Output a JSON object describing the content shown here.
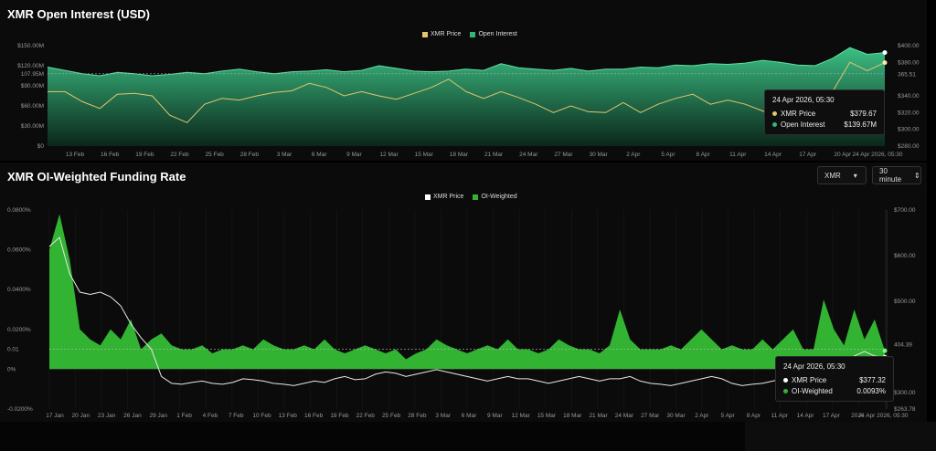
{
  "colors": {
    "price": "#e3c56c",
    "oi": "#35b57a",
    "funding": "#32b332",
    "price2": "#ffffff",
    "bg": "#0b0b0b"
  },
  "oi_panel": {
    "title": "XMR Open Interest (USD)",
    "legend": [
      {
        "label": "XMR Price",
        "color": "#e3c56c"
      },
      {
        "label": "Open Interest",
        "color": "#35b57a"
      }
    ],
    "tooltip": {
      "date": "24 Apr 2026, 05:30",
      "rows": [
        {
          "label": "XMR Price",
          "value": "$379.67",
          "color": "#e3c56c"
        },
        {
          "label": "Open Interest",
          "value": "$139.67M",
          "color": "#35b57a"
        }
      ]
    },
    "cursor_label": "365.51"
  },
  "funding_panel": {
    "title": "XMR OI-Weighted Funding Rate",
    "select_symbol": "XMR",
    "select_interval": "30 minute",
    "legend": [
      {
        "label": "XMR Price",
        "color": "#ffffff"
      },
      {
        "label": "OI-Weighted",
        "color": "#32b332"
      }
    ],
    "tooltip": {
      "date": "24 Apr 2026, 05:30",
      "rows": [
        {
          "label": "XMR Price",
          "value": "$377.32",
          "color": "#ffffff"
        },
        {
          "label": "OI-Weighted",
          "value": "0.0093%",
          "color": "#32b332"
        }
      ]
    },
    "cursor_label": "404.39",
    "y_marker_label": "0.01"
  },
  "chart_data": [
    {
      "type": "area",
      "title": "XMR Open Interest (USD)",
      "x_ticks": [
        "13 Feb",
        "16 Feb",
        "19 Feb",
        "22 Feb",
        "25 Feb",
        "28 Feb",
        "3 Mar",
        "6 Mar",
        "9 Mar",
        "12 Mar",
        "15 Mar",
        "18 Mar",
        "21 Mar",
        "24 Mar",
        "27 Mar",
        "30 Mar",
        "2 Apr",
        "5 Apr",
        "8 Apr",
        "11 Apr",
        "14 Apr",
        "17 Apr",
        "20 Apr",
        "24 Apr 2026, 05:30"
      ],
      "y_left_ticks": [
        "$0",
        "$30.00M",
        "$60.00M",
        "$90.00M",
        "107.95M",
        "$120.00M",
        "$150.00M"
      ],
      "y_right_ticks": [
        "$280.00",
        "$300.00",
        "$320.00",
        "$340.00",
        "365.51",
        "$380.00",
        "$400.00"
      ],
      "ylim_left": [
        0,
        150
      ],
      "ylim_right": [
        280,
        400
      ],
      "series": [
        {
          "name": "Open Interest",
          "unit": "$M",
          "values": [
            118,
            113,
            108,
            105,
            110,
            108,
            105,
            107,
            110,
            108,
            112,
            115,
            111,
            108,
            111,
            112,
            114,
            111,
            113,
            120,
            116,
            112,
            111,
            112,
            115,
            113,
            123,
            117,
            115,
            113,
            116,
            112,
            115,
            115,
            118,
            117,
            121,
            120,
            123,
            122,
            124,
            128,
            125,
            121,
            120,
            131,
            147,
            137,
            139.67
          ]
        },
        {
          "name": "XMR Price",
          "unit": "$",
          "values": [
            345,
            345,
            333,
            325,
            342,
            343,
            340,
            317,
            308,
            330,
            337,
            335,
            340,
            344,
            346,
            355,
            350,
            340,
            345,
            340,
            336,
            343,
            350,
            360,
            345,
            337,
            345,
            338,
            330,
            320,
            328,
            321,
            320,
            332,
            320,
            330,
            337,
            342,
            330,
            335,
            330,
            322,
            312,
            305,
            325,
            345,
            380,
            370,
            379.67
          ]
        }
      ]
    },
    {
      "type": "bar",
      "title": "XMR OI-Weighted Funding Rate",
      "x_ticks": [
        "17 Jan",
        "20 Jan",
        "23 Jan",
        "26 Jan",
        "29 Jan",
        "1 Feb",
        "4 Feb",
        "7 Feb",
        "10 Feb",
        "13 Feb",
        "16 Feb",
        "19 Feb",
        "22 Feb",
        "25 Feb",
        "28 Feb",
        "3 Mar",
        "6 Mar",
        "9 Mar",
        "12 Mar",
        "15 Mar",
        "18 Mar",
        "21 Mar",
        "24 Mar",
        "27 Mar",
        "30 Mar",
        "2 Apr",
        "5 Apr",
        "8 Apr",
        "11 Apr",
        "14 Apr",
        "17 Apr",
        "20 A",
        "24 Apr 2026, 05:30"
      ],
      "y_left_ticks": [
        "-0.0200%",
        "0%",
        "0.01",
        "0.0200%",
        "0.0400%",
        "0.0600%",
        "0.0800%"
      ],
      "y_right_ticks": [
        "$263.78",
        "$300.00",
        "404.39",
        "$500.00",
        "$600.00",
        "$700.00"
      ],
      "ylim_left": [
        -0.02,
        0.08
      ],
      "ylim_right": [
        263.78,
        700
      ],
      "series": [
        {
          "name": "OI-Weighted",
          "unit": "%",
          "values": [
            0.06,
            0.078,
            0.055,
            0.02,
            0.015,
            0.012,
            0.02,
            0.015,
            0.025,
            0.01,
            0.015,
            0.018,
            0.012,
            0.01,
            0.01,
            0.012,
            0.008,
            0.01,
            0.01,
            0.012,
            0.01,
            0.015,
            0.012,
            0.01,
            0.01,
            0.012,
            0.01,
            0.015,
            0.01,
            0.008,
            0.01,
            0.012,
            0.01,
            0.008,
            0.01,
            0.005,
            0.008,
            0.01,
            0.015,
            0.012,
            0.01,
            0.008,
            0.01,
            0.012,
            0.01,
            0.015,
            0.01,
            0.01,
            0.008,
            0.01,
            0.015,
            0.012,
            0.01,
            0.01,
            0.008,
            0.012,
            0.03,
            0.015,
            0.01,
            0.01,
            0.01,
            0.012,
            0.01,
            0.015,
            0.02,
            0.015,
            0.01,
            0.012,
            0.01,
            0.01,
            0.015,
            0.01,
            0.015,
            0.02,
            0.01,
            0.01,
            0.035,
            0.02,
            0.012,
            0.03,
            0.015,
            0.025,
            0.0093
          ]
        },
        {
          "name": "XMR Price",
          "unit": "$",
          "values": [
            620,
            640,
            560,
            520,
            515,
            520,
            510,
            490,
            450,
            420,
            395,
            335,
            320,
            318,
            322,
            325,
            320,
            318,
            322,
            330,
            328,
            325,
            320,
            318,
            315,
            320,
            325,
            322,
            330,
            335,
            328,
            330,
            340,
            345,
            342,
            335,
            340,
            345,
            350,
            345,
            340,
            335,
            330,
            325,
            330,
            335,
            330,
            330,
            325,
            320,
            325,
            330,
            335,
            330,
            325,
            330,
            330,
            335,
            325,
            320,
            318,
            315,
            320,
            325,
            330,
            335,
            330,
            320,
            315,
            318,
            320,
            325,
            330,
            335,
            340,
            345,
            350,
            360,
            370,
            380,
            390,
            380,
            377.32
          ]
        }
      ]
    }
  ]
}
